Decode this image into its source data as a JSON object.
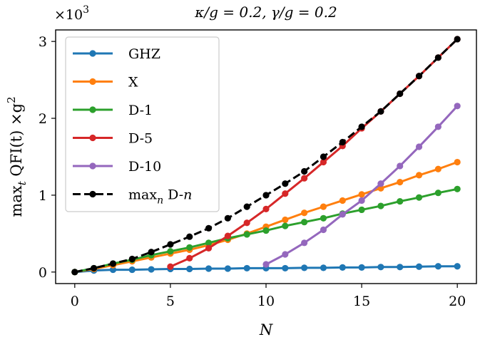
{
  "chart_data": {
    "type": "line",
    "title": "κ/g = 0.2, γ/g = 0.2",
    "xlabel": "N",
    "ylabel": "max_t QFI(t) ×g²",
    "ylabel_parts": {
      "main": "max",
      "sub": "t",
      "rest": " QFI(t) ×g",
      "sup": "2"
    },
    "y_multiplier": {
      "base": "×10",
      "exp": "3"
    },
    "xlim": [
      -1,
      21
    ],
    "ylim": [
      -0.15,
      3.15
    ],
    "xticks": [
      0,
      5,
      10,
      15,
      20
    ],
    "yticks": [
      0,
      1,
      2,
      3
    ],
    "legend_position": "upper-left",
    "series": [
      {
        "name": "GHZ",
        "label_parts": {
          "main": "GHZ",
          "sub": "",
          "rest": ""
        },
        "color": "#1f77b4",
        "dashed": false,
        "x": [
          0,
          1,
          2,
          3,
          4,
          5,
          6,
          7,
          8,
          9,
          10,
          11,
          12,
          13,
          14,
          15,
          16,
          17,
          18,
          19,
          20
        ],
        "values": [
          0,
          0.02,
          0.03,
          0.03,
          0.035,
          0.04,
          0.04,
          0.045,
          0.045,
          0.05,
          0.05,
          0.05,
          0.055,
          0.055,
          0.06,
          0.06,
          0.065,
          0.065,
          0.07,
          0.075,
          0.075
        ]
      },
      {
        "name": "X",
        "label_parts": {
          "main": "X",
          "sub": "",
          "rest": ""
        },
        "color": "#ff7f0e",
        "dashed": false,
        "x": [
          0,
          1,
          2,
          3,
          4,
          5,
          6,
          7,
          8,
          9,
          10,
          11,
          12,
          13,
          14,
          15,
          16,
          17,
          18,
          19,
          20
        ],
        "values": [
          0,
          0.04,
          0.09,
          0.14,
          0.19,
          0.24,
          0.29,
          0.35,
          0.42,
          0.5,
          0.59,
          0.68,
          0.77,
          0.85,
          0.93,
          1.01,
          1.09,
          1.17,
          1.26,
          1.34,
          1.43
        ]
      },
      {
        "name": "D-1",
        "label_parts": {
          "main": "D-1",
          "sub": "",
          "rest": ""
        },
        "color": "#2ca02c",
        "dashed": false,
        "x": [
          0,
          1,
          2,
          3,
          4,
          5,
          6,
          7,
          8,
          9,
          10,
          11,
          12,
          13,
          14,
          15,
          16,
          17,
          18,
          19,
          20
        ],
        "values": [
          0,
          0.05,
          0.11,
          0.16,
          0.22,
          0.27,
          0.32,
          0.38,
          0.44,
          0.49,
          0.54,
          0.6,
          0.65,
          0.7,
          0.76,
          0.81,
          0.86,
          0.92,
          0.97,
          1.03,
          1.08
        ]
      },
      {
        "name": "D-5",
        "label_parts": {
          "main": "D-5",
          "sub": "",
          "rest": ""
        },
        "color": "#d62728",
        "dashed": false,
        "x": [
          5,
          6,
          7,
          8,
          9,
          10,
          11,
          12,
          13,
          14,
          15,
          16,
          17,
          18,
          19,
          20
        ],
        "values": [
          0.07,
          0.18,
          0.31,
          0.47,
          0.64,
          0.82,
          1.02,
          1.22,
          1.43,
          1.64,
          1.87,
          2.09,
          2.32,
          2.55,
          2.79,
          3.03
        ]
      },
      {
        "name": "D-10",
        "label_parts": {
          "main": "D-10",
          "sub": "",
          "rest": ""
        },
        "color": "#9467bd",
        "dashed": false,
        "x": [
          10,
          11,
          12,
          13,
          14,
          15,
          16,
          17,
          18,
          19,
          20
        ],
        "values": [
          0.1,
          0.23,
          0.38,
          0.55,
          0.75,
          0.93,
          1.15,
          1.38,
          1.63,
          1.89,
          2.16
        ]
      },
      {
        "name": "max_n D-n",
        "label_parts": {
          "main": "max",
          "sub": "n",
          "rest": " D-n"
        },
        "color": "#000000",
        "dashed": true,
        "x": [
          0,
          1,
          2,
          3,
          4,
          5,
          6,
          7,
          8,
          9,
          10,
          11,
          12,
          13,
          14,
          15,
          16,
          17,
          18,
          19,
          20
        ],
        "values": [
          0,
          0.05,
          0.11,
          0.17,
          0.26,
          0.36,
          0.46,
          0.57,
          0.7,
          0.85,
          1.0,
          1.15,
          1.31,
          1.5,
          1.69,
          1.89,
          2.09,
          2.32,
          2.55,
          2.79,
          3.03
        ]
      }
    ]
  }
}
